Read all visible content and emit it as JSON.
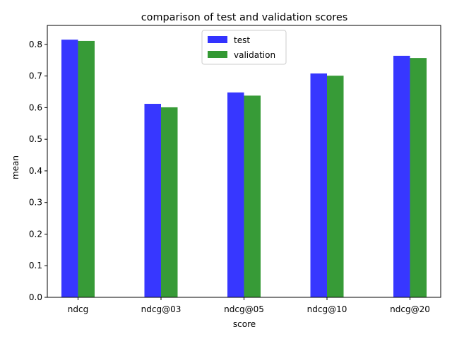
{
  "chart_data": {
    "type": "bar",
    "title": "comparison of test and validation scores",
    "xlabel": "score",
    "ylabel": "mean",
    "categories": [
      "ndcg",
      "ndcg@03",
      "ndcg@05",
      "ndcg@10",
      "ndcg@20"
    ],
    "series": [
      {
        "name": "test",
        "color": "#3333ff",
        "values": [
          0.815,
          0.612,
          0.648,
          0.708,
          0.764
        ]
      },
      {
        "name": "validation",
        "color": "#339933",
        "values": [
          0.811,
          0.601,
          0.638,
          0.701,
          0.757
        ]
      }
    ],
    "ylim": [
      0,
      0.86
    ],
    "yticks": [
      "0.0",
      "0.1",
      "0.2",
      "0.3",
      "0.4",
      "0.5",
      "0.6",
      "0.7",
      "0.8"
    ],
    "grid": false,
    "legend_position": "top-center"
  }
}
